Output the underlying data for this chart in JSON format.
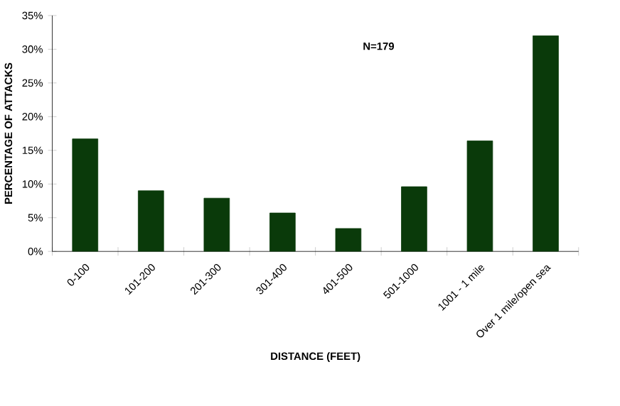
{
  "chart_data": {
    "type": "bar",
    "xlabel": "DISTANCE (FEET)",
    "ylabel": "PERCENTAGE OF ATTACKS",
    "categories": [
      "0-100",
      "101-200",
      "201-300",
      "301-400",
      "401-500",
      "501-1000",
      "1001 - 1 mile",
      "Over 1 mile/open sea"
    ],
    "values": [
      16.7,
      9.0,
      7.9,
      5.7,
      3.4,
      9.6,
      16.4,
      32.0
    ],
    "color": "#0a3a0a",
    "ylim": [
      0,
      35
    ],
    "yticks": [
      {
        "value": 0,
        "label": "0%"
      },
      {
        "value": 5,
        "label": "5%"
      },
      {
        "value": 10,
        "label": "10%"
      },
      {
        "value": 15,
        "label": "15%"
      },
      {
        "value": 20,
        "label": "20%"
      },
      {
        "value": 25,
        "label": "25%"
      },
      {
        "value": 30,
        "label": "30%"
      },
      {
        "value": 35,
        "label": "35%"
      }
    ],
    "annotations": [
      "N=179"
    ],
    "grid": false
  }
}
